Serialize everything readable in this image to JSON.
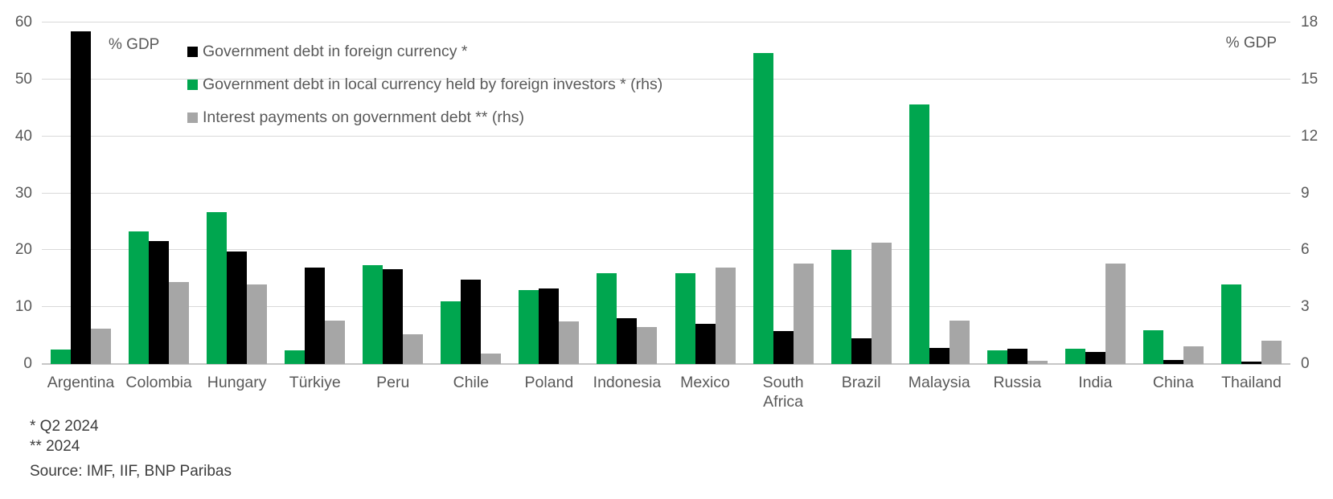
{
  "axes": {
    "left_unit_label": "% GDP",
    "right_unit_label": "% GDP",
    "left_ticks": [
      60,
      50,
      40,
      30,
      20,
      10,
      0
    ],
    "right_ticks": [
      18,
      15,
      12,
      9,
      6,
      3,
      0
    ],
    "left_max": 60,
    "right_max": 18,
    "grid": true
  },
  "legend": [
    {
      "label": "Government debt in foreign currency *",
      "color": "#000000"
    },
    {
      "label": "Government debt in local currency held by foreign investors * (rhs)",
      "color": "#00a64f"
    },
    {
      "label": "Interest payments on government debt ** (rhs)",
      "color": "#a6a6a6"
    }
  ],
  "chart_data": {
    "type": "bar",
    "title": "",
    "xlabel": "",
    "ylabel_left": "% GDP",
    "ylabel_right": "% GDP",
    "left_axis_range": [
      0,
      60
    ],
    "right_axis_range": [
      0,
      18
    ],
    "legend_position": "top-left-inside",
    "categories": [
      "Argentina",
      "Colombia",
      "Hungary",
      "Türkiye",
      "Peru",
      "Chile",
      "Poland",
      "Indonesia",
      "Mexico",
      "South Africa",
      "Brazil",
      "Malaysia",
      "Russia",
      "India",
      "China",
      "Thailand"
    ],
    "series": [
      {
        "name": "Government debt in local currency held by foreign investors * (rhs)",
        "axis": "right",
        "color": "#00a64f",
        "values": [
          0.75,
          7.0,
          8.0,
          0.7,
          5.2,
          3.3,
          3.9,
          4.8,
          4.8,
          16.4,
          6.0,
          13.7,
          0.7,
          0.8,
          1.8,
          4.2
        ]
      },
      {
        "name": "Government debt in foreign currency *",
        "axis": "left",
        "color": "#000000",
        "values": [
          58.5,
          21.6,
          19.7,
          17.0,
          16.7,
          14.8,
          13.3,
          8.0,
          7.0,
          5.8,
          4.5,
          2.8,
          2.7,
          2.1,
          0.7,
          0.4
        ]
      },
      {
        "name": "Interest payments on government debt ** (rhs)",
        "axis": "right",
        "color": "#a6a6a6",
        "values": [
          1.85,
          4.3,
          4.2,
          2.3,
          1.55,
          0.55,
          2.25,
          1.95,
          5.1,
          5.3,
          6.4,
          2.3,
          0.15,
          5.3,
          0.95,
          1.25
        ]
      }
    ]
  },
  "footnotes": {
    "fn1": "* Q2 2024",
    "fn2": "** 2024"
  },
  "source": "Source: IMF, IIF, BNP Paribas"
}
